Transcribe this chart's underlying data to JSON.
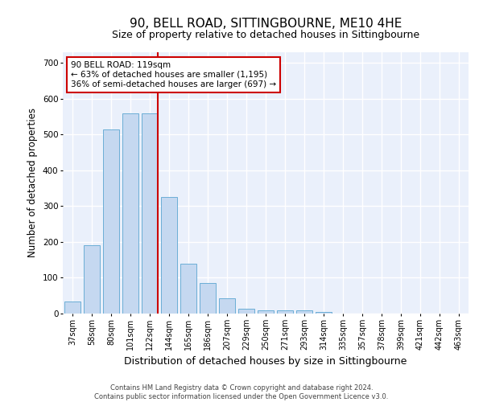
{
  "title": "90, BELL ROAD, SITTINGBOURNE, ME10 4HE",
  "subtitle": "Size of property relative to detached houses in Sittingbourne",
  "xlabel": "Distribution of detached houses by size in Sittingbourne",
  "ylabel": "Number of detached properties",
  "footnote": "Contains HM Land Registry data © Crown copyright and database right 2024.\nContains public sector information licensed under the Open Government Licence v3.0.",
  "categories": [
    "37sqm",
    "58sqm",
    "80sqm",
    "101sqm",
    "122sqm",
    "144sqm",
    "165sqm",
    "186sqm",
    "207sqm",
    "229sqm",
    "250sqm",
    "271sqm",
    "293sqm",
    "314sqm",
    "335sqm",
    "357sqm",
    "378sqm",
    "399sqm",
    "421sqm",
    "442sqm",
    "463sqm"
  ],
  "values": [
    33,
    190,
    515,
    560,
    560,
    325,
    140,
    85,
    42,
    13,
    8,
    10,
    10,
    5,
    0,
    0,
    0,
    0,
    0,
    0,
    0
  ],
  "bar_color": "#c5d8f0",
  "bar_edge_color": "#6baed6",
  "vline_color": "#cc0000",
  "vline_x": 4.42,
  "annotation_text": "90 BELL ROAD: 119sqm\n← 63% of detached houses are smaller (1,195)\n36% of semi-detached houses are larger (697) →",
  "annotation_box_color": "#ffffff",
  "annotation_box_edge": "#cc0000",
  "ylim": [
    0,
    730
  ],
  "yticks": [
    0,
    100,
    200,
    300,
    400,
    500,
    600,
    700
  ],
  "bg_color": "#eaf0fb",
  "grid_color": "#ffffff",
  "title_fontsize": 11,
  "subtitle_fontsize": 9,
  "xlabel_fontsize": 9,
  "ylabel_fontsize": 8.5,
  "tick_fontsize": 7,
  "annot_fontsize": 7.5,
  "footnote_fontsize": 6
}
